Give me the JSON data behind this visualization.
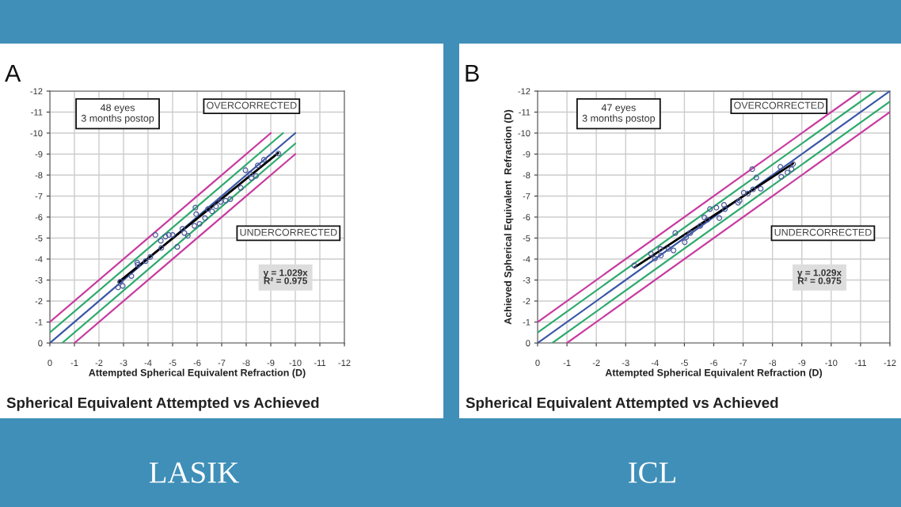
{
  "chart_data": [
    {
      "type": "scatter",
      "title": "Spherical Equivalent Attempted vs Achieved",
      "xlabel": "Attempted Spherical Equivalent Refraction (D)",
      "xlim": [
        0,
        -12
      ],
      "ylim": [
        0,
        -12
      ],
      "xticks": [
        0,
        -1,
        -2,
        -3,
        -4,
        -5,
        -6,
        -7,
        -8,
        -9,
        -10,
        -11,
        -12
      ],
      "yticks": [
        0,
        -1,
        -2,
        -3,
        -4,
        -5,
        -6,
        -7,
        -8,
        -9,
        -10,
        -11,
        -12
      ],
      "grid": true,
      "annotations": [
        "A",
        "48 eyes\n3 months postop",
        "OVERCORRECTED",
        "UNDERCORRECTED",
        "y = 1.029x\nR² = 0.975",
        "LASIK"
      ],
      "series": [
        {
          "type": "line",
          "color": "#c83aa0",
          "x": [
            0,
            -9
          ],
          "values": [
            -1,
            -10
          ]
        },
        {
          "type": "line",
          "color": "#2eaa6e",
          "x": [
            0,
            -9.5
          ],
          "values": [
            -0.5,
            -10
          ]
        },
        {
          "type": "line",
          "color": "#3a56a8",
          "x": [
            0,
            -10
          ],
          "values": [
            0,
            -10
          ]
        },
        {
          "type": "line",
          "color": "#2eaa6e",
          "x": [
            -0.5,
            -10
          ],
          "values": [
            0,
            -9.5
          ]
        },
        {
          "type": "line",
          "color": "#c83aa0",
          "x": [
            -1,
            -10
          ],
          "values": [
            0,
            -9
          ]
        },
        {
          "marker": "circle",
          "color": "#4a5a9a",
          "x": [
            -2.78,
            -2.97,
            -2.87,
            -3.32,
            -3.56,
            -3.58,
            -3.9,
            -4.09,
            -4.3,
            -4.52,
            -4.54,
            -4.71,
            -4.85,
            -5.0,
            -5.19,
            -5.4,
            -5.48,
            -5.62,
            -5.93,
            -5.96,
            -5.89,
            -6.1,
            -6.32,
            -6.44,
            -6.61,
            -6.77,
            -6.96,
            -7.16,
            -7.35,
            -7.78,
            -7.97,
            -8.16,
            -8.21,
            -8.4,
            -8.47,
            -8.72,
            -9.31
          ],
          "values": [
            -2.65,
            -2.72,
            -2.92,
            -3.19,
            -3.83,
            -3.73,
            -3.9,
            -4.1,
            -5.15,
            -4.87,
            -4.53,
            -5.07,
            -5.15,
            -5.15,
            -4.58,
            -5.44,
            -5.24,
            -5.11,
            -6.45,
            -6.14,
            -5.58,
            -5.68,
            -5.95,
            -6.38,
            -6.27,
            -6.51,
            -6.72,
            -6.78,
            -6.85,
            -7.39,
            -8.23,
            -8.06,
            -7.86,
            -7.96,
            -8.46,
            -8.73,
            -9.03
          ]
        },
        {
          "type": "line",
          "color": "#000000",
          "x": [
            -2.8,
            -9.3
          ],
          "values": [
            -2.9,
            -9.05
          ]
        }
      ]
    },
    {
      "type": "scatter",
      "title": "Spherical Equivalent Attempted vs Achieved",
      "xlabel": "Attempted Spherical Equivalent Refraction (D)",
      "ylabel": "Achieved Spherical Equivalent  Refraction (D)",
      "xlim": [
        0,
        -12
      ],
      "ylim": [
        0,
        -12
      ],
      "xticks": [
        0,
        -1,
        -2,
        -3,
        -4,
        -5,
        -6,
        -7,
        -8,
        -9,
        -10,
        -11,
        -12
      ],
      "yticks": [
        0,
        -1,
        -2,
        -3,
        -4,
        -5,
        -6,
        -7,
        -8,
        -9,
        -10,
        -11,
        -12
      ],
      "grid": true,
      "annotations": [
        "B",
        "47 eyes\n3 months postop",
        "OVERCORRECTED",
        "UNDERCORRECTED",
        "y = 1.029x\nR² = 0.975",
        "ICL"
      ],
      "series": [
        {
          "type": "line",
          "color": "#c83aa0",
          "x": [
            0,
            -11
          ],
          "values": [
            -1,
            -12
          ]
        },
        {
          "type": "line",
          "color": "#2eaa6e",
          "x": [
            0,
            -11.5
          ],
          "values": [
            -0.5,
            -12
          ]
        },
        {
          "type": "line",
          "color": "#3a56a8",
          "x": [
            0,
            -12
          ],
          "values": [
            0,
            -12
          ]
        },
        {
          "type": "line",
          "color": "#2eaa6e",
          "x": [
            -0.5,
            -12
          ],
          "values": [
            0,
            -11.5
          ]
        },
        {
          "type": "line",
          "color": "#c83aa0",
          "x": [
            -1,
            -12
          ],
          "values": [
            0,
            -11
          ]
        },
        {
          "marker": "circle",
          "color": "#4a5a9a",
          "x": [
            -3.29,
            -3.86,
            -4.0,
            -4.18,
            -4.2,
            -4.46,
            -4.63,
            -4.69,
            -5.01,
            -5.06,
            -5.2,
            -5.54,
            -5.68,
            -5.78,
            -5.87,
            -6.09,
            -6.19,
            -6.35,
            -6.38,
            -6.83,
            -6.88,
            -7.02,
            -7.16,
            -7.31,
            -7.34,
            -7.45,
            -7.6,
            -8.27,
            -8.3,
            -8.51,
            -8.65,
            -8.7
          ],
          "values": [
            -3.7,
            -4.26,
            -4.03,
            -4.48,
            -4.17,
            -4.48,
            -4.41,
            -5.24,
            -4.8,
            -5.04,
            -5.24,
            -5.58,
            -5.98,
            -5.87,
            -6.38,
            -6.45,
            -5.95,
            -6.58,
            -6.38,
            -6.68,
            -6.78,
            -7.16,
            -7.12,
            -8.28,
            -7.32,
            -7.88,
            -7.35,
            -8.39,
            -7.92,
            -8.12,
            -8.28,
            -8.53
          ]
        },
        {
          "type": "line",
          "color": "#000000",
          "x": [
            -3.3,
            -8.7
          ],
          "values": [
            -3.6,
            -8.55
          ]
        }
      ]
    }
  ]
}
